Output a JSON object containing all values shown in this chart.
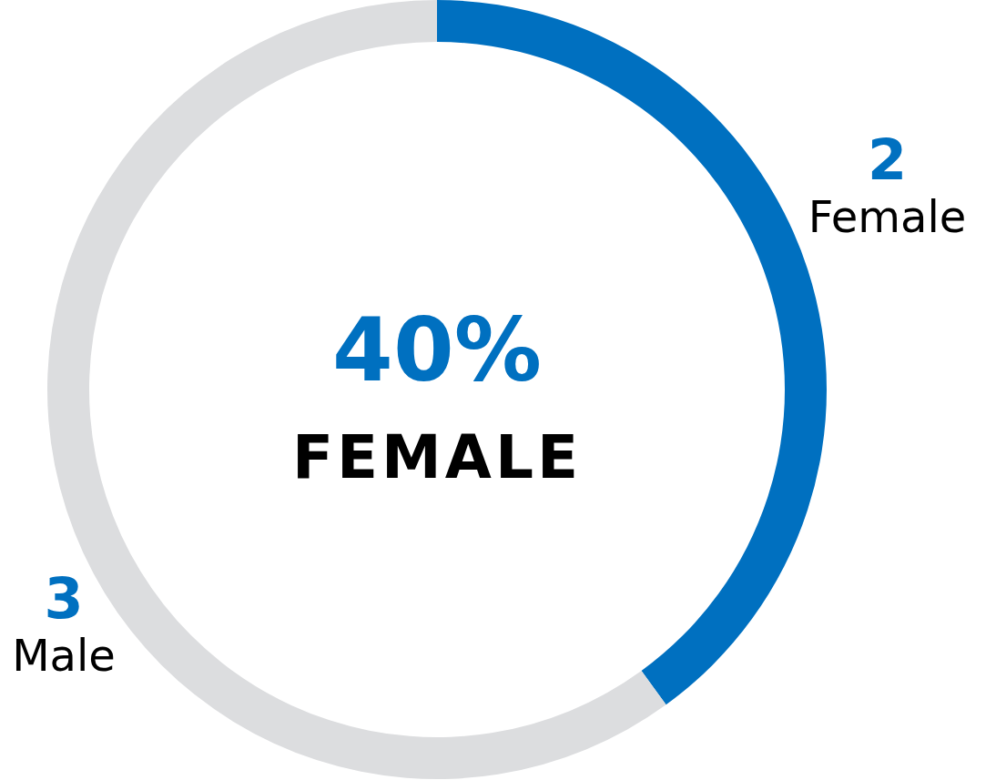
{
  "chart_data": {
    "type": "donut",
    "categories": [
      "Female",
      "Male"
    ],
    "values": [
      2,
      3
    ],
    "colors": [
      "#0070c0",
      "#dcdddf"
    ],
    "data_labels": true,
    "annotations": [
      "40%",
      "FEMALE"
    ]
  }
}
